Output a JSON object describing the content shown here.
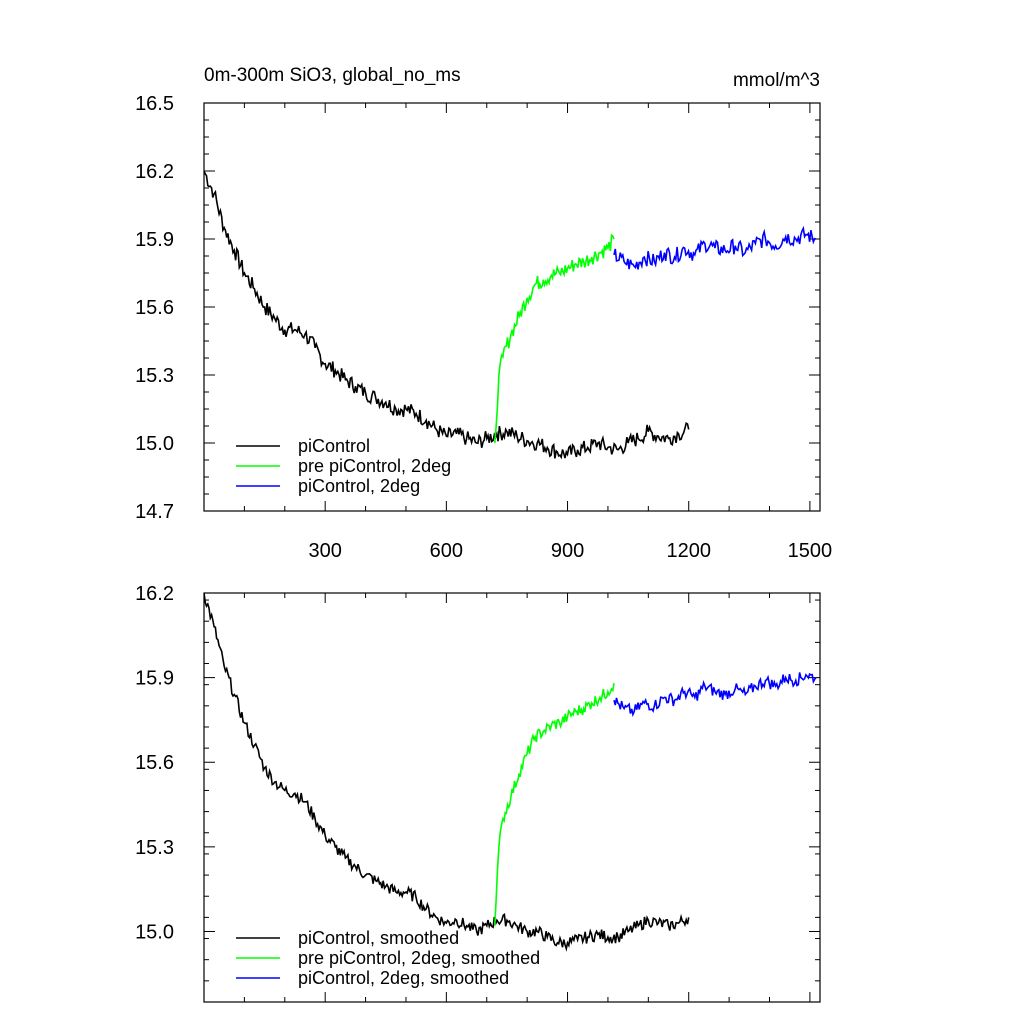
{
  "figure": {
    "title_left": "0m-300m SiO3, global_no_ms",
    "title_right": "mmol/m^3"
  },
  "chart_data": [
    {
      "type": "line",
      "title": "0m-300m SiO3, global_no_ms",
      "units": "mmol/m^3",
      "xlim": [
        0,
        1525
      ],
      "ylim": [
        14.7,
        16.5
      ],
      "x_ticks": [
        300,
        600,
        900,
        1200,
        1500
      ],
      "x_tick_labels": [
        "300",
        "600",
        "900",
        "1200",
        "1500"
      ],
      "y_ticks": [
        14.7,
        15.0,
        15.3,
        15.6,
        15.9,
        16.2,
        16.5
      ],
      "y_tick_labels": [
        "14.7",
        "15.0",
        "15.3",
        "15.6",
        "15.9",
        "16.2",
        "16.5"
      ],
      "legend": [
        "piControl",
        "pre piControl, 2deg",
        "piControl, 2deg"
      ],
      "legend_position": "bottom-left",
      "grid": false,
      "series": [
        {
          "name": "piControl",
          "color": "#000000",
          "x": [
            0,
            25,
            50,
            75,
            100,
            125,
            150,
            175,
            200,
            225,
            250,
            275,
            300,
            325,
            350,
            375,
            400,
            425,
            450,
            475,
            500,
            525,
            550,
            575,
            600,
            625,
            650,
            675,
            700,
            725,
            750,
            775,
            800,
            825,
            850,
            875,
            900,
            925,
            950,
            975,
            1000,
            1025,
            1050,
            1075,
            1100,
            1125,
            1150,
            1175,
            1200
          ],
          "values": [
            16.2,
            16.1,
            15.95,
            15.85,
            15.75,
            15.68,
            15.6,
            15.55,
            15.5,
            15.5,
            15.48,
            15.42,
            15.35,
            15.32,
            15.28,
            15.25,
            15.22,
            15.2,
            15.18,
            15.15,
            15.15,
            15.13,
            15.1,
            15.06,
            15.03,
            15.04,
            15.02,
            15.0,
            15.02,
            15.04,
            15.05,
            15.03,
            15.01,
            15.0,
            14.98,
            14.96,
            14.95,
            14.97,
            14.98,
            15.0,
            14.98,
            14.97,
            15.0,
            15.02,
            15.05,
            15.03,
            15.02,
            15.04,
            15.06
          ]
        },
        {
          "name": "pre piControl, 2deg",
          "color": "#00ff00",
          "x": [
            720,
            730,
            740,
            760,
            780,
            800,
            820,
            840,
            860,
            880,
            900,
            920,
            940,
            960,
            980,
            1000,
            1015
          ],
          "values": [
            15.0,
            15.3,
            15.38,
            15.48,
            15.56,
            15.64,
            15.7,
            15.72,
            15.74,
            15.75,
            15.77,
            15.79,
            15.8,
            15.82,
            15.84,
            15.86,
            15.9
          ]
        },
        {
          "name": "piControl, 2deg",
          "color": "#0000ff",
          "x": [
            1015,
            1040,
            1065,
            1090,
            1115,
            1140,
            1165,
            1190,
            1215,
            1240,
            1265,
            1290,
            1315,
            1340,
            1365,
            1390,
            1415,
            1440,
            1465,
            1490,
            1515
          ],
          "values": [
            15.83,
            15.8,
            15.78,
            15.82,
            15.8,
            15.84,
            15.82,
            15.86,
            15.83,
            15.88,
            15.86,
            15.85,
            15.87,
            15.84,
            15.88,
            15.9,
            15.87,
            15.91,
            15.9,
            15.92,
            15.9
          ]
        }
      ]
    },
    {
      "type": "line",
      "xlim": [
        0,
        1525
      ],
      "ylim": [
        14.75,
        16.2
      ],
      "x_ticks": [
        300,
        600,
        900,
        1200,
        1500
      ],
      "y_ticks": [
        15.0,
        15.3,
        15.6,
        15.9,
        16.2
      ],
      "y_tick_labels": [
        "15.0",
        "15.3",
        "15.6",
        "15.9",
        "16.2"
      ],
      "legend": [
        "piControl, smoothed",
        "pre piControl, 2deg, smoothed",
        "piControl, 2deg, smoothed"
      ],
      "legend_position": "bottom-left",
      "grid": false,
      "series": [
        {
          "name": "piControl, smoothed",
          "color": "#000000",
          "x": [
            0,
            25,
            50,
            75,
            100,
            125,
            150,
            175,
            200,
            225,
            250,
            275,
            300,
            325,
            350,
            375,
            400,
            425,
            450,
            475,
            500,
            525,
            550,
            575,
            600,
            625,
            650,
            675,
            700,
            725,
            750,
            775,
            800,
            825,
            850,
            875,
            900,
            925,
            950,
            975,
            1000,
            1025,
            1050,
            1075,
            1100,
            1125,
            1150,
            1175,
            1200
          ],
          "values": [
            16.2,
            16.08,
            15.94,
            15.84,
            15.74,
            15.66,
            15.58,
            15.53,
            15.5,
            15.49,
            15.46,
            15.4,
            15.34,
            15.3,
            15.26,
            15.23,
            15.2,
            15.18,
            15.16,
            15.14,
            15.14,
            15.12,
            15.08,
            15.05,
            15.03,
            15.04,
            15.02,
            15.0,
            15.02,
            15.04,
            15.04,
            15.02,
            15.0,
            15.0,
            14.98,
            14.96,
            14.96,
            14.97,
            14.98,
            14.99,
            14.98,
            14.98,
            15.0,
            15.02,
            15.04,
            15.03,
            15.02,
            15.03,
            15.05
          ]
        },
        {
          "name": "pre piControl, 2deg, smoothed",
          "color": "#00ff00",
          "x": [
            720,
            730,
            740,
            760,
            780,
            800,
            820,
            840,
            860,
            880,
            900,
            920,
            940,
            960,
            980,
            1000,
            1015
          ],
          "values": [
            15.02,
            15.3,
            15.4,
            15.48,
            15.56,
            15.63,
            15.69,
            15.71,
            15.73,
            15.74,
            15.76,
            15.78,
            15.79,
            15.81,
            15.83,
            15.85,
            15.88
          ]
        },
        {
          "name": "piControl, 2deg, smoothed",
          "color": "#0000ff",
          "x": [
            1015,
            1040,
            1065,
            1090,
            1115,
            1140,
            1165,
            1190,
            1215,
            1240,
            1265,
            1290,
            1315,
            1340,
            1365,
            1390,
            1415,
            1440,
            1465,
            1490,
            1515
          ],
          "values": [
            15.82,
            15.79,
            15.78,
            15.81,
            15.8,
            15.83,
            15.82,
            15.85,
            15.83,
            15.87,
            15.85,
            15.84,
            15.86,
            15.84,
            15.87,
            15.89,
            15.87,
            15.9,
            15.89,
            15.91,
            15.9
          ]
        }
      ]
    }
  ]
}
